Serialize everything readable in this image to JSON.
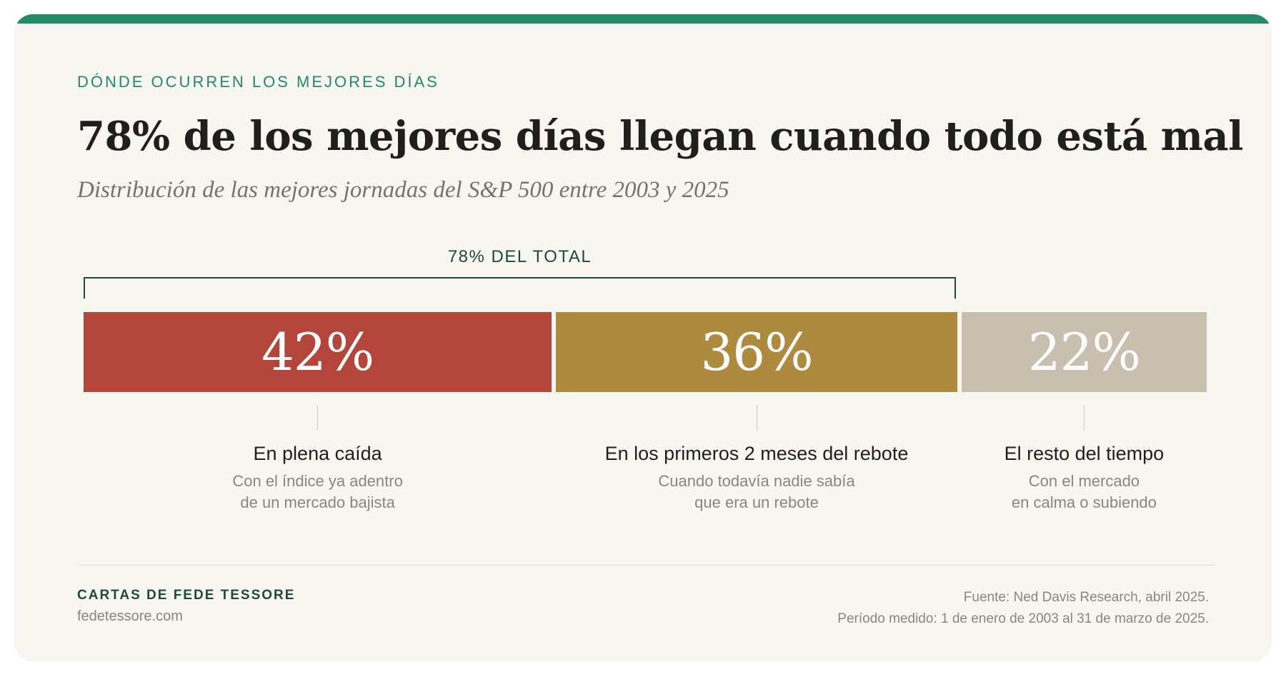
{
  "header": {
    "eyebrow": "DÓNDE OCURREN LOS MEJORES DÍAS",
    "title": "78% de los mejores días llegan cuando todo está mal",
    "subtitle": "Distribución de las mejores jornadas del S&P 500 entre 2003 y 2025"
  },
  "bracket_label": "78% DEL TOTAL",
  "chart_data": {
    "type": "bar",
    "orientation": "horizontal-stacked-100",
    "unit": "%",
    "categories": [
      "En plena caída",
      "En los primeros 2 meses del rebote",
      "El resto del tiempo"
    ],
    "values": [
      42,
      36,
      22
    ],
    "value_labels": [
      "42%",
      "36%",
      "22%"
    ],
    "descriptions": [
      [
        "Con el índice ya adentro",
        "de un mercado bajista"
      ],
      [
        "Cuando todavía nadie sabía",
        "que era un rebote"
      ],
      [
        "Con el mercado",
        "en calma o subiendo"
      ]
    ],
    "colors": [
      "#b3453b",
      "#ad8a3e",
      "#c8bfae"
    ],
    "annotation": {
      "label": "78% DEL TOTAL",
      "spans_categories": [
        0,
        1
      ],
      "value": 78
    }
  },
  "footer": {
    "brand": "CARTAS DE FEDE TESSORE",
    "site": "fedetessore.com",
    "source_line1": "Fuente: Ned Davis Research, abril 2025.",
    "source_line2": "Período medido: 1 de enero de 2003 al 31 de marzo de 2025."
  },
  "colors": {
    "accent": "#228a64",
    "dark_green": "#1e4a37",
    "background": "#f8f6f1"
  }
}
